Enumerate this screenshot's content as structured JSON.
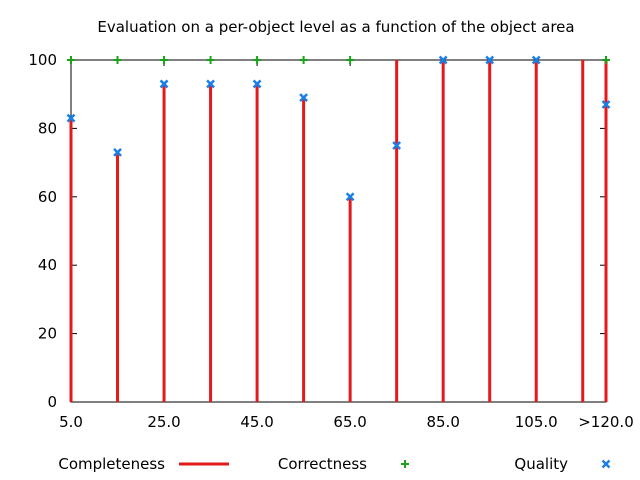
{
  "chart_data": {
    "type": "bar",
    "title": "Evaluation on a per-object level as a function of the object area",
    "xlabel": "",
    "ylabel": "",
    "x": [
      5,
      15,
      25,
      35,
      45,
      55,
      65,
      75,
      85,
      95,
      105,
      115,
      120
    ],
    "xlim": [
      5,
      120
    ],
    "xtick_labels": [
      {
        "x": 5,
        "label": "5.0"
      },
      {
        "x": 25,
        "label": "25.0"
      },
      {
        "x": 45,
        "label": "45.0"
      },
      {
        "x": 65,
        "label": "65.0"
      },
      {
        "x": 85,
        "label": "85.0"
      },
      {
        "x": 105,
        "label": "105.0"
      },
      {
        "x": 120,
        "label": ">120.0"
      }
    ],
    "ylim": [
      0,
      100
    ],
    "yticks": [
      0,
      20,
      40,
      60,
      80,
      100
    ],
    "grid": false,
    "legend_position": "bottom",
    "series": [
      {
        "name": "Completeness",
        "style": "impulses",
        "color": "#e31a1c",
        "values": [
          83,
          73,
          93,
          93,
          93,
          89,
          60,
          100,
          100,
          100,
          100,
          100,
          100
        ]
      },
      {
        "name": "Correctness",
        "style": "plus-points",
        "color": "#1aa31a",
        "values": [
          100,
          100,
          100,
          100,
          100,
          100,
          100,
          null,
          null,
          null,
          null,
          null,
          100
        ]
      },
      {
        "name": "Quality",
        "style": "cross-points",
        "color": "#1a7fe6",
        "values": [
          83,
          73,
          93,
          93,
          93,
          89,
          60,
          75,
          100,
          100,
          100,
          null,
          87
        ]
      }
    ]
  }
}
